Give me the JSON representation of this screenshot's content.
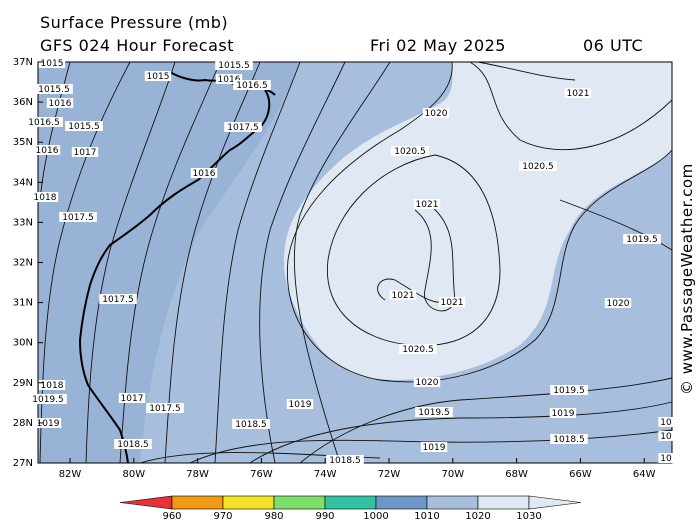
{
  "header": {
    "title": "Surface Pressure (mb)",
    "subtitle": "GFS 024 Hour Forecast",
    "date": "Fri 02 May 2025",
    "time": "06 UTC"
  },
  "axes": {
    "lat_labels": [
      "37N",
      "36N",
      "35N",
      "34N",
      "33N",
      "32N",
      "31N",
      "30N",
      "29N",
      "28N",
      "27N"
    ],
    "lon_labels": [
      "82W",
      "80W",
      "78W",
      "76W",
      "74W",
      "72W",
      "70W",
      "68W",
      "66W",
      "64W"
    ]
  },
  "contour_labels": [
    "1015",
    "1015",
    "1015.5",
    "1016",
    "1016.5",
    "1015.5",
    "1016",
    "1015.5",
    "1016.5",
    "1017.5",
    "1016",
    "1017",
    "1016",
    "1018",
    "1017.5",
    "1017.5",
    "1018",
    "1017",
    "1017.5",
    "1019",
    "1018.5",
    "1018.5",
    "1020",
    "1020.5",
    "1021",
    "1021",
    "1021",
    "1020.5",
    "1020",
    "1019.5",
    "1019",
    "1019.5",
    "1019",
    "1018.5",
    "1020.5",
    "1021",
    "1019.5",
    "1020",
    "1019.5",
    "1019",
    "1018.5",
    "10",
    "10",
    "10"
  ],
  "legend": {
    "values": [
      "960",
      "970",
      "980",
      "990",
      "1000",
      "1010",
      "1020",
      "1030"
    ],
    "colors": [
      "#e8303a",
      "#f39a14",
      "#f5e22a",
      "#7ee06a",
      "#35c2a0",
      "#6c97c8",
      "#a7bedd",
      "#dfe8f3"
    ]
  },
  "watermark": "© www.PassageWeather.com"
}
